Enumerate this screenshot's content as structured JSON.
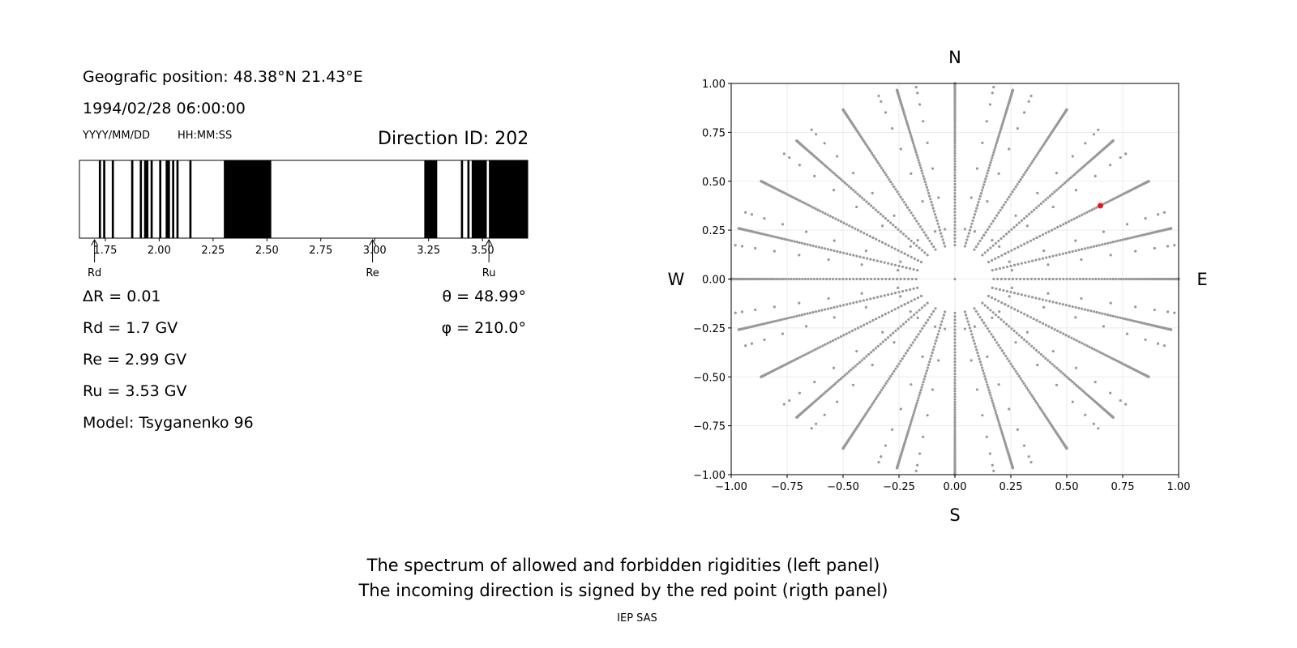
{
  "left_panel": {
    "geo_position": "Geografic position: 48.38°N 21.43°E",
    "datetime": "1994/02/28 06:00:00",
    "date_format": "YYYY/MM/DD",
    "time_format": "HH:MM:SS",
    "direction_id": "Direction ID: 202",
    "delta_r": "ΔR = 0.01",
    "rd": "Rd = 1.7 GV",
    "re": "Re = 2.99 GV",
    "ru": "Ru = 3.53 GV",
    "model": "Model: Tsyganenko 96",
    "theta": "θ = 48.99°",
    "phi": "φ = 210.0°"
  },
  "right_panel": {
    "north": "N",
    "south": "S",
    "west": "W",
    "east": "E"
  },
  "footer": {
    "line1": "The spectrum of allowed and forbidden rigidities (left panel)",
    "line2": "The incoming direction is signed by the red point (rigth panel)",
    "credit": "IEP SAS"
  },
  "chart_data": [
    {
      "type": "bar",
      "description_kind": "rigidity spectrum barcode",
      "xlim": [
        1.63,
        3.71
      ],
      "ticks": [
        "1.75",
        "2.00",
        "2.25",
        "2.50",
        "2.75",
        "3.00",
        "3.25",
        "3.50"
      ],
      "forbidden_intervals": [
        [
          1.72,
          1.73
        ],
        [
          1.74,
          1.75
        ],
        [
          1.78,
          1.79
        ],
        [
          1.87,
          1.88
        ],
        [
          1.91,
          1.92
        ],
        [
          1.93,
          1.95
        ],
        [
          1.96,
          1.97
        ],
        [
          2.0,
          2.01
        ],
        [
          2.03,
          2.05
        ],
        [
          2.06,
          2.07
        ],
        [
          2.08,
          2.09
        ],
        [
          2.14,
          2.15
        ],
        [
          2.3,
          2.52
        ],
        [
          3.23,
          3.29
        ],
        [
          3.4,
          3.41
        ],
        [
          3.43,
          3.44
        ],
        [
          3.45,
          3.52
        ],
        [
          3.53,
          3.71
        ]
      ],
      "markers": [
        {
          "label": "Rd",
          "value": 1.7
        },
        {
          "label": "Re",
          "value": 2.99
        },
        {
          "label": "Ru",
          "value": 3.53
        }
      ]
    },
    {
      "type": "scatter",
      "xlim": [
        -1.0,
        1.0
      ],
      "ylim": [
        -1.0,
        1.0
      ],
      "ticks": [
        "−1.00",
        "−0.75",
        "−0.50",
        "−0.25",
        "0.00",
        "0.25",
        "0.50",
        "0.75",
        "1.00"
      ],
      "tick_values": [
        -1.0,
        -0.75,
        -0.5,
        -0.25,
        0.0,
        0.25,
        0.5,
        0.75,
        1.0
      ],
      "grid": true,
      "grid_directions": {
        "center": [
          0.0,
          0.0
        ],
        "rings_deg": [
          15,
          25,
          35,
          45,
          55,
          65,
          75,
          85
        ],
        "ring_start_deg": 10,
        "ring_end_deg": 90,
        "ring_step_deg": 1,
        "azimuth_step_deg": 15,
        "ring_azimuth_step_deg": 10,
        "color": "#999999"
      },
      "highlight": {
        "x": 0.65,
        "y": 0.375,
        "color": "#e8141c"
      }
    }
  ]
}
